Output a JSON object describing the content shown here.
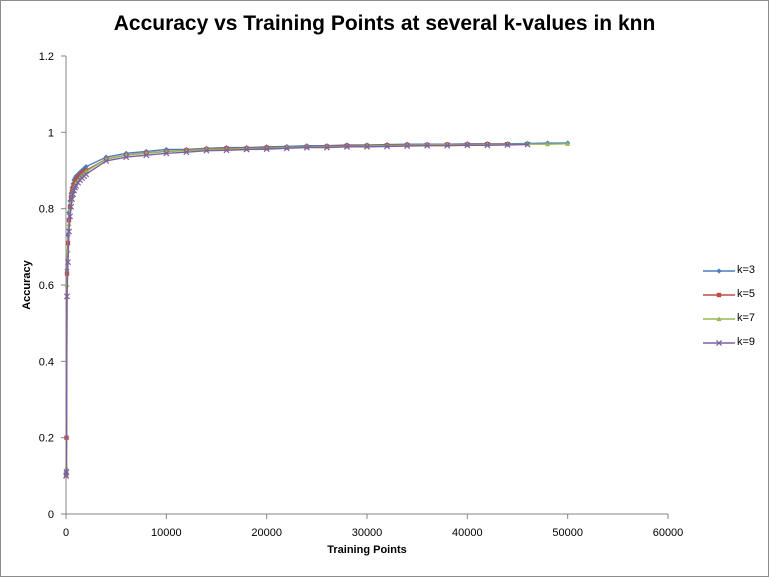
{
  "chart_data": {
    "type": "line",
    "title": "Accuracy vs Training Points at several k-values in knn",
    "xlabel": "Training Points",
    "ylabel": "Accuracy",
    "xlim": [
      0,
      60000
    ],
    "ylim": [
      0,
      1.2
    ],
    "x_ticks": [
      "0",
      "10000",
      "20000",
      "30000",
      "40000",
      "50000",
      "60000"
    ],
    "y_ticks": [
      "0",
      "0.2",
      "0.4",
      "0.6",
      "0.8",
      "1",
      "1.2"
    ],
    "grid": false,
    "legend_position": "right",
    "series": [
      {
        "name": "k=3",
        "color": "#4a7ebb",
        "marker": "diamond",
        "x": [
          10,
          50,
          100,
          200,
          300,
          400,
          500,
          600,
          700,
          800,
          900,
          1000,
          1200,
          1400,
          1600,
          1800,
          2000,
          4000,
          6000,
          8000,
          10000,
          12000,
          14000,
          16000,
          18000,
          20000,
          22000,
          24000,
          26000,
          28000,
          30000,
          32000,
          34000,
          36000,
          38000,
          40000,
          42000,
          44000,
          46000,
          48000,
          50000
        ],
        "y": [
          0.11,
          0.2,
          0.64,
          0.73,
          0.79,
          0.82,
          0.84,
          0.855,
          0.865,
          0.875,
          0.88,
          0.885,
          0.89,
          0.895,
          0.9,
          0.905,
          0.91,
          0.935,
          0.945,
          0.95,
          0.955,
          0.955,
          0.958,
          0.96,
          0.96,
          0.962,
          0.963,
          0.965,
          0.965,
          0.967,
          0.967,
          0.968,
          0.969,
          0.969,
          0.969,
          0.97,
          0.97,
          0.97,
          0.971,
          0.972,
          0.972
        ]
      },
      {
        "name": "k=5",
        "color": "#be4b48",
        "marker": "square",
        "x": [
          10,
          50,
          100,
          200,
          300,
          400,
          500,
          600,
          700,
          800,
          900,
          1000,
          1200,
          1400,
          1600,
          1800,
          2000,
          4000,
          6000,
          8000,
          10000,
          12000,
          14000,
          16000,
          18000,
          20000,
          22000,
          24000,
          26000,
          28000,
          30000,
          32000,
          34000,
          36000,
          38000,
          40000,
          42000,
          44000
        ],
        "y": [
          0.1,
          0.2,
          0.63,
          0.71,
          0.77,
          0.805,
          0.83,
          0.845,
          0.855,
          0.863,
          0.87,
          0.875,
          0.882,
          0.888,
          0.893,
          0.897,
          0.9,
          0.93,
          0.94,
          0.946,
          0.95,
          0.953,
          0.956,
          0.958,
          0.958,
          0.96,
          0.96,
          0.962,
          0.963,
          0.965,
          0.965,
          0.966,
          0.967,
          0.967,
          0.968,
          0.968,
          0.969,
          0.969
        ]
      },
      {
        "name": "k=7",
        "color": "#98b954",
        "marker": "triangle",
        "x": [
          10,
          50,
          100,
          200,
          300,
          400,
          500,
          600,
          700,
          800,
          900,
          1000,
          1200,
          1400,
          1600,
          1800,
          2000,
          4000,
          6000,
          8000,
          10000,
          12000,
          14000,
          16000,
          18000,
          20000,
          22000,
          24000,
          26000,
          28000,
          30000,
          32000,
          34000,
          36000,
          38000,
          40000,
          42000,
          44000,
          46000,
          48000,
          50000
        ],
        "y": [
          0.1,
          0.12,
          0.6,
          0.69,
          0.76,
          0.8,
          0.82,
          0.835,
          0.845,
          0.855,
          0.862,
          0.868,
          0.875,
          0.882,
          0.888,
          0.893,
          0.897,
          0.93,
          0.94,
          0.945,
          0.95,
          0.952,
          0.955,
          0.956,
          0.957,
          0.958,
          0.96,
          0.961,
          0.962,
          0.963,
          0.964,
          0.965,
          0.966,
          0.967,
          0.967,
          0.967,
          0.968,
          0.968,
          0.969,
          0.969,
          0.97
        ]
      },
      {
        "name": "k=9",
        "color": "#7d60a0",
        "marker": "x",
        "x": [
          10,
          50,
          100,
          200,
          300,
          400,
          500,
          600,
          700,
          800,
          900,
          1000,
          1200,
          1400,
          1600,
          1800,
          2000,
          4000,
          6000,
          8000,
          10000,
          12000,
          14000,
          16000,
          18000,
          20000,
          22000,
          24000,
          26000,
          28000,
          30000,
          32000,
          34000,
          36000,
          38000,
          40000,
          42000,
          44000,
          46000
        ],
        "y": [
          0.1,
          0.11,
          0.57,
          0.66,
          0.74,
          0.78,
          0.805,
          0.825,
          0.838,
          0.848,
          0.855,
          0.86,
          0.868,
          0.875,
          0.88,
          0.885,
          0.89,
          0.925,
          0.935,
          0.94,
          0.945,
          0.948,
          0.952,
          0.953,
          0.955,
          0.956,
          0.958,
          0.96,
          0.96,
          0.962,
          0.962,
          0.963,
          0.964,
          0.965,
          0.965,
          0.966,
          0.966,
          0.967,
          0.968
        ]
      }
    ]
  }
}
